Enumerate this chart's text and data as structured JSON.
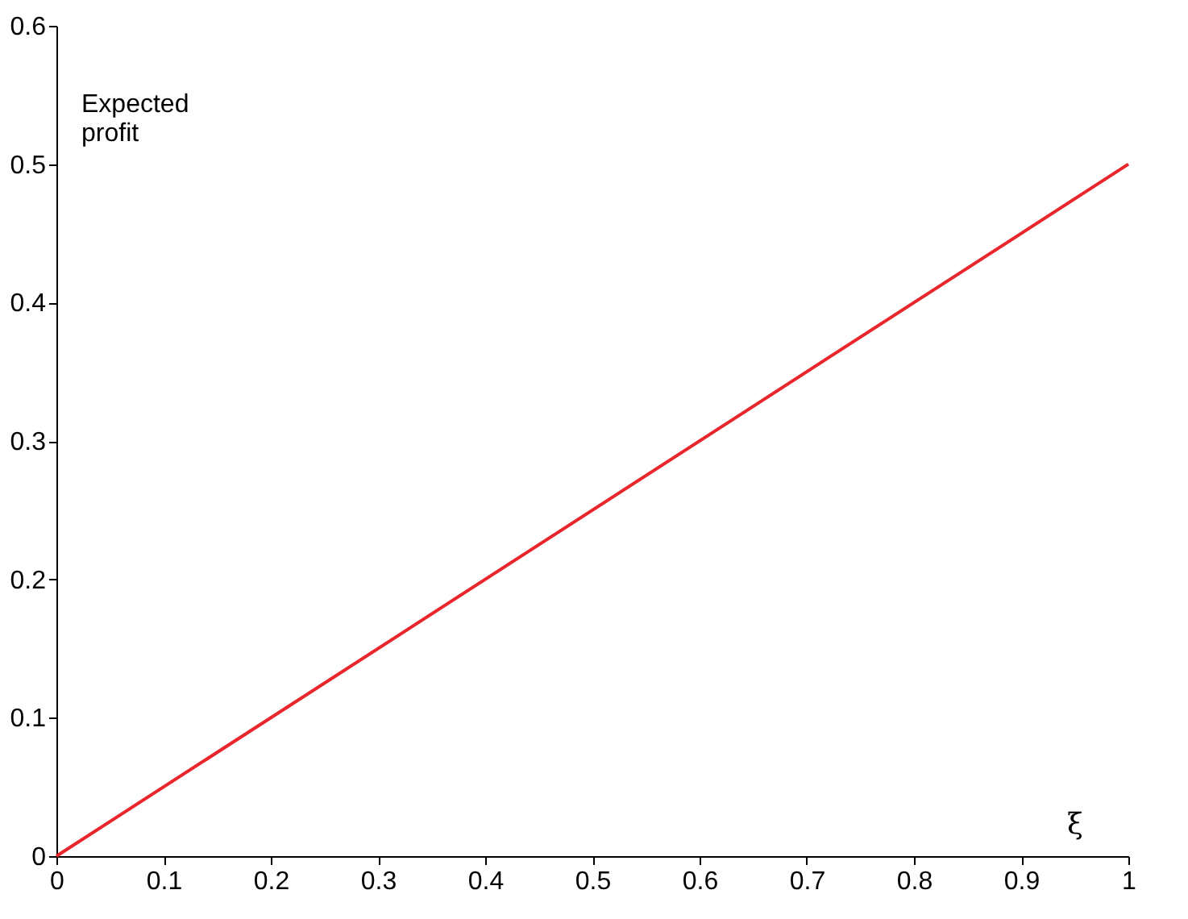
{
  "chart_data": {
    "type": "line",
    "xlabel": "ξ",
    "ylabel": "Expected profit",
    "x": [
      0,
      1
    ],
    "series": [
      {
        "color": "#e8262c",
        "values": [
          0,
          0.5
        ]
      }
    ],
    "xlim": [
      0,
      1
    ],
    "xticks": [
      0,
      0.1,
      0.2,
      0.3,
      0.4,
      0.5,
      0.6,
      0.7,
      0.8,
      0.9,
      1
    ],
    "ylim": [
      0,
      0.6
    ],
    "yticks": [
      0,
      0.1,
      0.2,
      0.3,
      0.4,
      0.5,
      0.6
    ],
    "grid": false,
    "marker": "none",
    "line_style": "solid"
  }
}
